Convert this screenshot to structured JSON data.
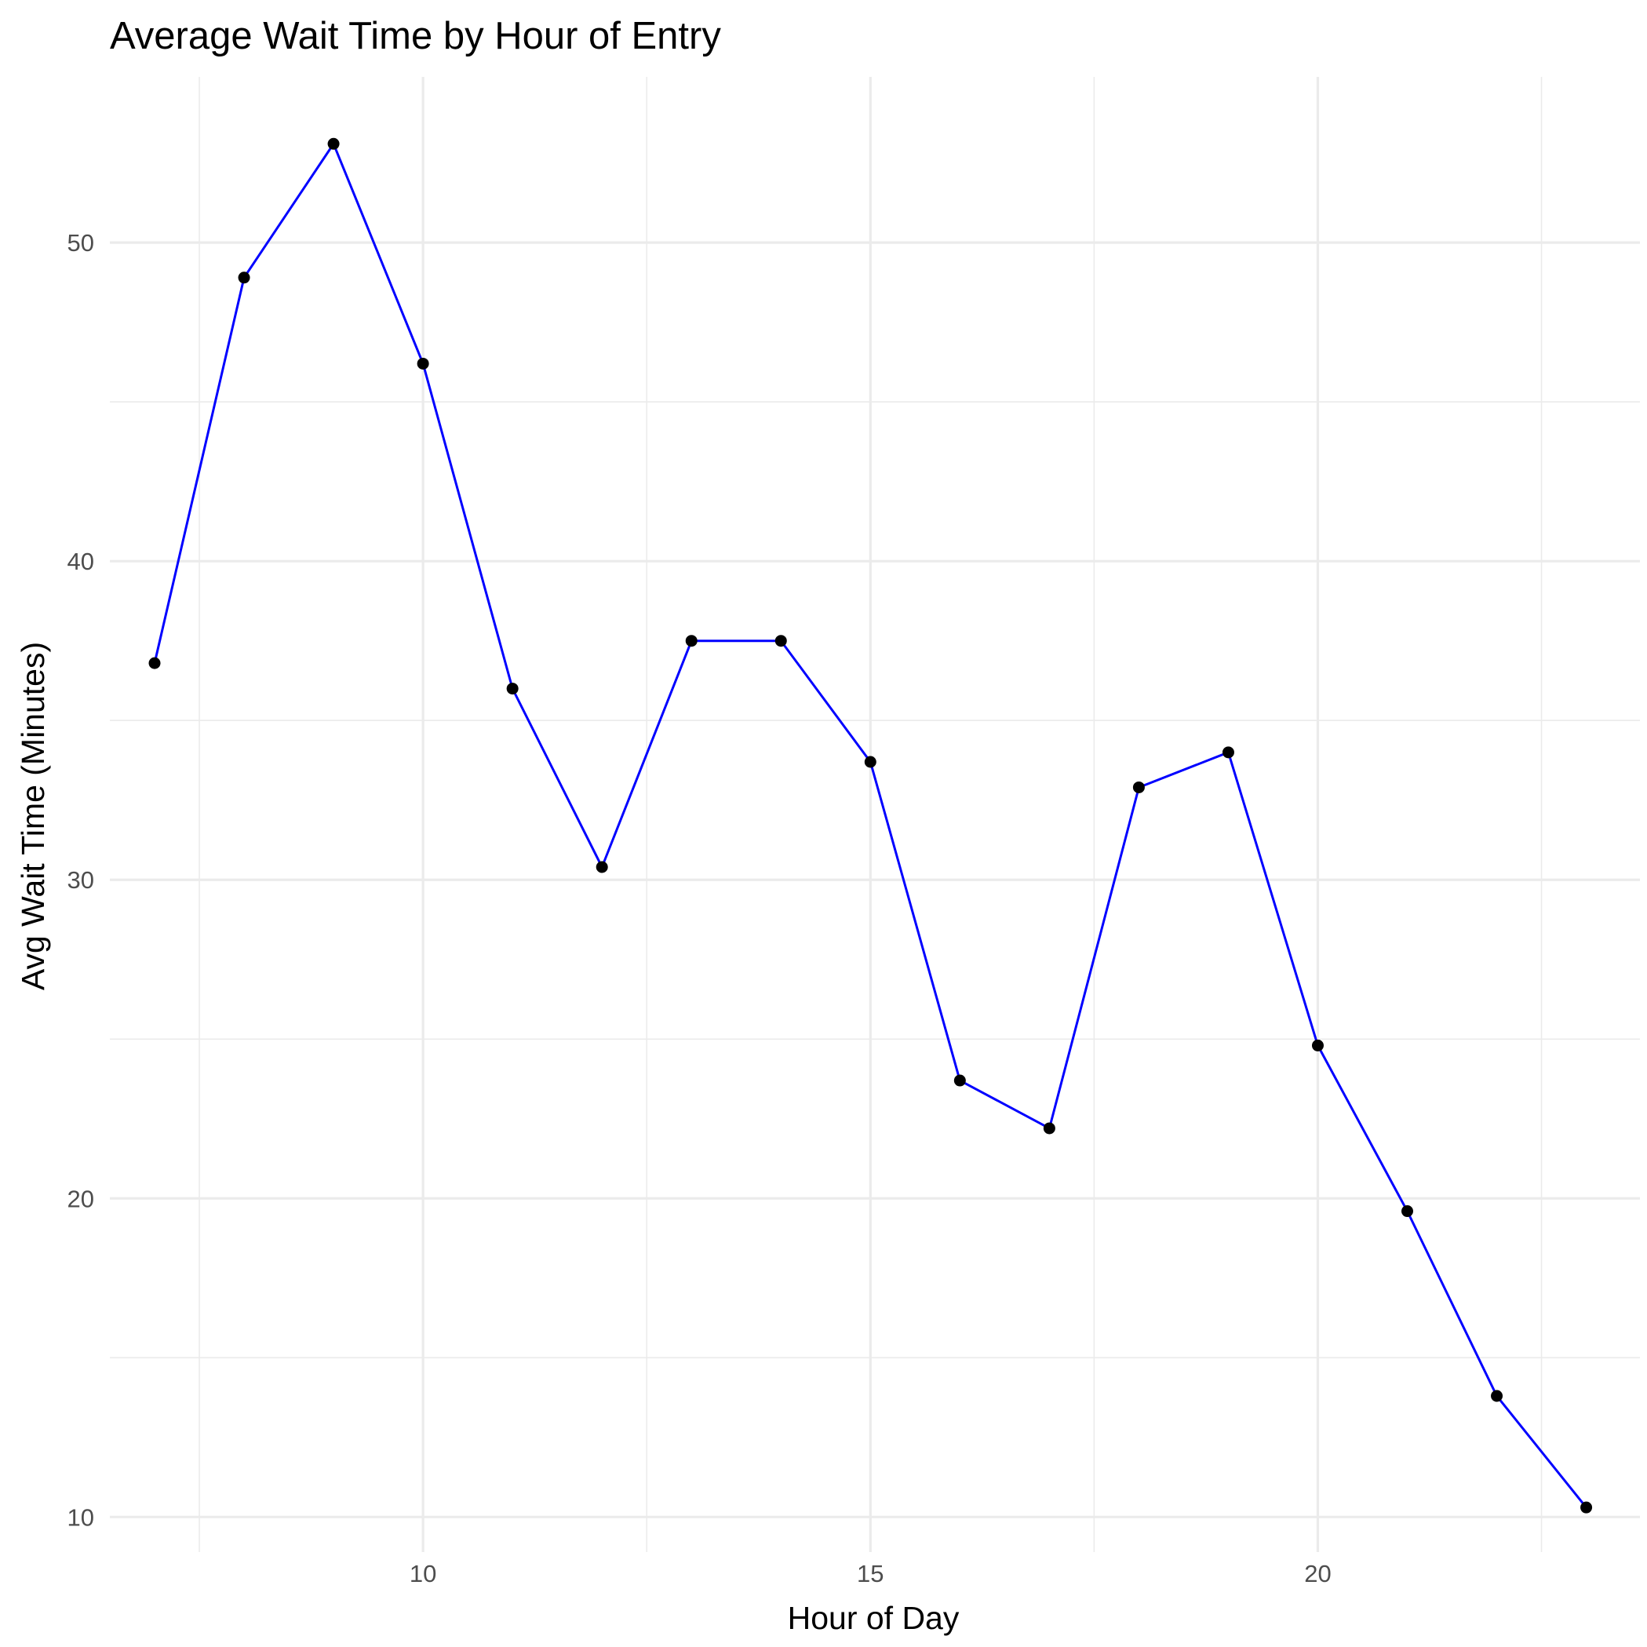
{
  "chart_data": {
    "type": "line",
    "title": "Average Wait Time by Hour of Entry",
    "xlabel": "Hour of Day",
    "ylabel": "Avg Wait Time (Minutes)",
    "xlim": [
      6.5,
      23.6
    ],
    "ylim": [
      8.9,
      55.2
    ],
    "x_ticks": [
      10,
      15,
      20
    ],
    "x_tick_labels": [
      "10",
      "15",
      "20"
    ],
    "x_minor_ticks": [
      7.5,
      12.5,
      17.5,
      22.5
    ],
    "y_ticks": [
      10,
      20,
      30,
      40,
      50
    ],
    "y_tick_labels": [
      "10",
      "20",
      "30",
      "40",
      "50"
    ],
    "y_minor_ticks": [
      15,
      25,
      35,
      45
    ],
    "grid": true,
    "line_color": "#0000ff",
    "point_color": "#000000",
    "series": [
      {
        "x": [
          7,
          8,
          9,
          10,
          11,
          12,
          13,
          14,
          15,
          16,
          17,
          18,
          19,
          20,
          21,
          22,
          23
        ],
        "values": [
          36.8,
          48.9,
          53.1,
          46.2,
          36.0,
          30.4,
          37.5,
          37.5,
          33.7,
          23.7,
          22.2,
          32.9,
          34.0,
          24.8,
          19.6,
          13.8,
          10.3
        ]
      }
    ]
  }
}
